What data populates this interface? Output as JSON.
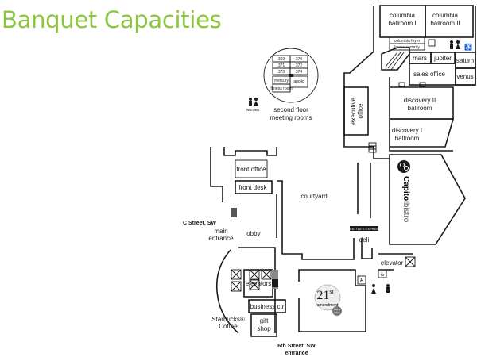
{
  "title": "Banquet Capacities",
  "rooms": {
    "columbia_ballroom_1": [
      "columbia",
      "ballroom I"
    ],
    "columbia_ballroom_2": [
      "columbia",
      "ballroom II"
    ],
    "columbia_foyer": "columbia foyer",
    "lowes_security": "lowes security",
    "mars": "mars",
    "jupiter": "jupiter",
    "saturn": "saturn",
    "venus": "venus",
    "sales_office": "sales office",
    "discovery_2": [
      "discovery II",
      "ballroom"
    ],
    "discovery_1": [
      "discovery I",
      "ballroom"
    ],
    "executive_office": [
      "executive",
      "office"
    ],
    "front_office": "front office",
    "front_desk": "front desk",
    "courtyard": "courtyard",
    "lobby": "lobby",
    "main_entrance": [
      "main",
      "entrance"
    ],
    "deli": "deli",
    "elevator": "elevator",
    "elevators": "elevators",
    "business_ctr": "business ctr",
    "gift_shop": [
      "gift",
      "shop"
    ],
    "starbucks": [
      "Starbucks®",
      "Coffee"
    ]
  },
  "inset": {
    "rooms": [
      "369",
      "370",
      "371",
      "372",
      "373",
      "374",
      "mercury",
      "apollo",
      "fitness room"
    ],
    "label": [
      "second floor",
      "meeting rooms"
    ],
    "restroom_label": "women"
  },
  "streets": {
    "c_street": "C Street, SW",
    "sixth_street": [
      "6th Street, SW",
      "entrance"
    ]
  },
  "capitol_bistro": {
    "bold": "Capitol",
    "light": "bistro"
  },
  "seattle_express": "SEATTLE'S EXPRESS",
  "amendment": {
    "number": "21",
    "sup": "st",
    "word": "amendment",
    "sub": [
      "BAR &",
      "GRILL"
    ]
  },
  "colors": {
    "title": "#8cc63f",
    "wall": "#1a1a1a",
    "gray": "#777777"
  }
}
